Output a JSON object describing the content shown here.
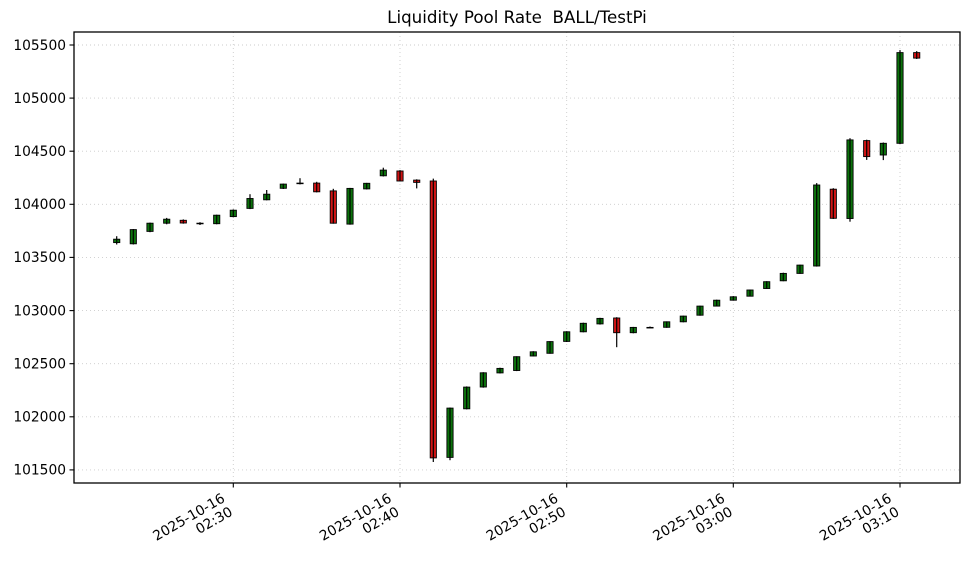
{
  "chart_data": {
    "type": "candlestick",
    "title": "Liquidity Pool Rate  BALL/TestPi",
    "xlabel": "",
    "ylabel": "",
    "ylim": [
      101377,
      105622
    ],
    "xlim_minutes": [
      140.44,
      193.6
    ],
    "grid": "dotted",
    "legend": "none",
    "y_ticks": [
      101500,
      102000,
      102500,
      103000,
      103500,
      104000,
      104500,
      105000,
      105500
    ],
    "x_ticks": [
      {
        "date": "2025-10-16",
        "time": "02:30"
      },
      {
        "date": "2025-10-16",
        "time": "02:40"
      },
      {
        "date": "2025-10-16",
        "time": "02:50"
      },
      {
        "date": "2025-10-16",
        "time": "03:00"
      },
      {
        "date": "2025-10-16",
        "time": "03:10"
      }
    ],
    "colors": {
      "up": "#0c720c",
      "down": "#d01414",
      "wick": "#000000",
      "grid": "#cbcbcb",
      "axis": "#000000"
    },
    "candles": [
      {
        "time": "02:23",
        "open": 103640,
        "high": 103700,
        "low": 103622,
        "close": 103672
      },
      {
        "time": "02:24",
        "open": 103628,
        "high": 103768,
        "low": 103622,
        "close": 103762
      },
      {
        "time": "02:25",
        "open": 103745,
        "high": 103828,
        "low": 103738,
        "close": 103822
      },
      {
        "time": "02:26",
        "open": 103822,
        "high": 103872,
        "low": 103812,
        "close": 103860
      },
      {
        "time": "02:27",
        "open": 103850,
        "high": 103858,
        "low": 103818,
        "close": 103825
      },
      {
        "time": "02:28",
        "open": 103822,
        "high": 103832,
        "low": 103805,
        "close": 103822
      },
      {
        "time": "02:29",
        "open": 103818,
        "high": 103902,
        "low": 103812,
        "close": 103898
      },
      {
        "time": "02:30",
        "open": 103885,
        "high": 103952,
        "low": 103878,
        "close": 103945
      },
      {
        "time": "02:31",
        "open": 103962,
        "high": 104095,
        "low": 103955,
        "close": 104055
      },
      {
        "time": "02:32",
        "open": 104042,
        "high": 104135,
        "low": 104038,
        "close": 104095
      },
      {
        "time": "02:33",
        "open": 104150,
        "high": 104195,
        "low": 104144,
        "close": 104190
      },
      {
        "time": "02:34",
        "open": 104198,
        "high": 104246,
        "low": 104188,
        "close": 104200
      },
      {
        "time": "02:35",
        "open": 104200,
        "high": 104212,
        "low": 104112,
        "close": 104118
      },
      {
        "time": "02:36",
        "open": 104126,
        "high": 104146,
        "low": 103818,
        "close": 103822
      },
      {
        "time": "02:37",
        "open": 103814,
        "high": 104155,
        "low": 103808,
        "close": 104150
      },
      {
        "time": "02:38",
        "open": 104145,
        "high": 104202,
        "low": 104140,
        "close": 104198
      },
      {
        "time": "02:39",
        "open": 104268,
        "high": 104345,
        "low": 104262,
        "close": 104322
      },
      {
        "time": "02:40",
        "open": 104314,
        "high": 104322,
        "low": 104216,
        "close": 104220
      },
      {
        "time": "02:41",
        "open": 104228,
        "high": 104236,
        "low": 104150,
        "close": 104206
      },
      {
        "time": "02:42",
        "open": 104220,
        "high": 104242,
        "low": 101575,
        "close": 101614
      },
      {
        "time": "02:43",
        "open": 101618,
        "high": 102088,
        "low": 101592,
        "close": 102082
      },
      {
        "time": "02:44",
        "open": 102076,
        "high": 102286,
        "low": 102070,
        "close": 102280
      },
      {
        "time": "02:45",
        "open": 102280,
        "high": 102420,
        "low": 102274,
        "close": 102414
      },
      {
        "time": "02:46",
        "open": 102414,
        "high": 102462,
        "low": 102408,
        "close": 102456
      },
      {
        "time": "02:47",
        "open": 102436,
        "high": 102570,
        "low": 102430,
        "close": 102566
      },
      {
        "time": "02:48",
        "open": 102572,
        "high": 102618,
        "low": 102568,
        "close": 102612
      },
      {
        "time": "02:49",
        "open": 102598,
        "high": 102712,
        "low": 102594,
        "close": 102708
      },
      {
        "time": "02:50",
        "open": 102710,
        "high": 102806,
        "low": 102704,
        "close": 102800
      },
      {
        "time": "02:51",
        "open": 102800,
        "high": 102886,
        "low": 102795,
        "close": 102880
      },
      {
        "time": "02:52",
        "open": 102874,
        "high": 102932,
        "low": 102868,
        "close": 102926
      },
      {
        "time": "02:53",
        "open": 102930,
        "high": 102938,
        "low": 102655,
        "close": 102792
      },
      {
        "time": "02:54",
        "open": 102792,
        "high": 102846,
        "low": 102786,
        "close": 102842
      },
      {
        "time": "02:55",
        "open": 102842,
        "high": 102850,
        "low": 102836,
        "close": 102842
      },
      {
        "time": "02:56",
        "open": 102842,
        "high": 102898,
        "low": 102838,
        "close": 102894
      },
      {
        "time": "02:57",
        "open": 102894,
        "high": 102952,
        "low": 102890,
        "close": 102948
      },
      {
        "time": "02:58",
        "open": 102956,
        "high": 103046,
        "low": 102952,
        "close": 103042
      },
      {
        "time": "02:59",
        "open": 103042,
        "high": 103102,
        "low": 103038,
        "close": 103098
      },
      {
        "time": "03:00",
        "open": 103098,
        "high": 103136,
        "low": 103094,
        "close": 103130
      },
      {
        "time": "03:01",
        "open": 103136,
        "high": 103198,
        "low": 103132,
        "close": 103194
      },
      {
        "time": "03:02",
        "open": 103208,
        "high": 103276,
        "low": 103204,
        "close": 103272
      },
      {
        "time": "03:03",
        "open": 103280,
        "high": 103356,
        "low": 103276,
        "close": 103350
      },
      {
        "time": "03:04",
        "open": 103350,
        "high": 103432,
        "low": 103346,
        "close": 103428
      },
      {
        "time": "03:05",
        "open": 103420,
        "high": 104200,
        "low": 103414,
        "close": 104182
      },
      {
        "time": "03:06",
        "open": 104142,
        "high": 104152,
        "low": 103862,
        "close": 103868
      },
      {
        "time": "03:07",
        "open": 103866,
        "high": 104622,
        "low": 103836,
        "close": 104606
      },
      {
        "time": "03:08",
        "open": 104600,
        "high": 104608,
        "low": 104418,
        "close": 104449
      },
      {
        "time": "03:09",
        "open": 104464,
        "high": 104582,
        "low": 104416,
        "close": 104574
      },
      {
        "time": "03:10",
        "open": 104574,
        "high": 105452,
        "low": 104568,
        "close": 105428
      },
      {
        "time": "03:11",
        "open": 105428,
        "high": 105442,
        "low": 105368,
        "close": 105376
      }
    ]
  }
}
